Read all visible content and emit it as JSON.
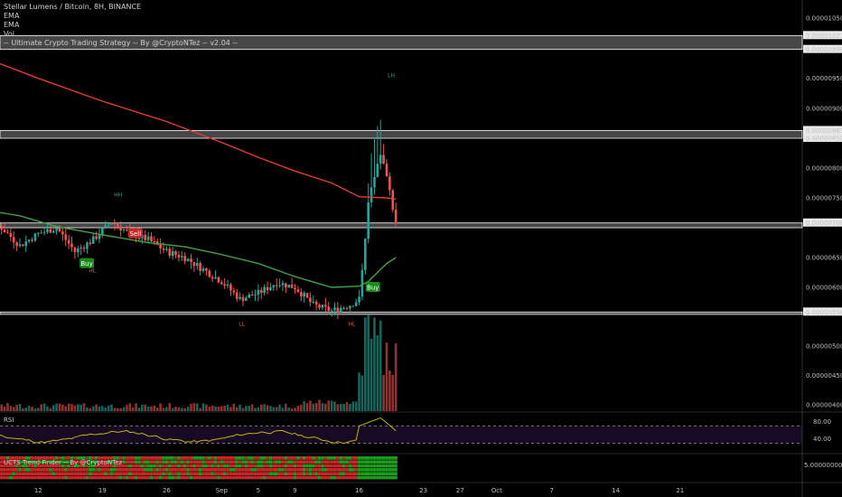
{
  "legend": {
    "title": "Stellar Lumens / Bitcoin, 8H, BINANCE",
    "ema1": "EMA",
    "ema2": "EMA",
    "vol": "Vol",
    "strategy": "-- Ultimate Crypto Trading Strategy -- By @CryptoNTez -- v2.04 --"
  },
  "panes": {
    "rsi": {
      "label": "RSI",
      "ticks": [
        "80.00",
        "40.00"
      ],
      "upper": 70,
      "lower": 30
    },
    "trend": {
      "label": "UCTS Trend Finder -- By @CryptoNTez",
      "ticks": [
        "5.00000000"
      ]
    }
  },
  "colors": {
    "up": "#26a69a",
    "down": "#ef5350",
    "ema_long": "#e53935",
    "ema_short": "#43a047",
    "rsi": "#c8b400",
    "zone": "#ffffff",
    "buy_bg": "#1b8a1b",
    "sell_bg": "#c62828"
  },
  "chart_data": {
    "type": "candlestick",
    "title": "Stellar Lumens / Bitcoin, 8H, BINANCE",
    "x_ticks": [
      {
        "label": "12",
        "day": 12
      },
      {
        "label": "19",
        "day": 19
      },
      {
        "label": "26",
        "day": 26
      },
      {
        "label": "Sep",
        "day": 32
      },
      {
        "label": "5",
        "day": 36
      },
      {
        "label": "9",
        "day": 40
      },
      {
        "label": "16",
        "day": 47
      },
      {
        "label": "23",
        "day": 54
      },
      {
        "label": "27",
        "day": 58
      },
      {
        "label": "Oct",
        "day": 62
      },
      {
        "label": "7",
        "day": 68
      },
      {
        "label": "14",
        "day": 75
      },
      {
        "label": "21",
        "day": 82
      }
    ],
    "price_ticks": [
      {
        "label": "0.00001050",
        "v": 1.05e-05
      },
      {
        "label": "0.00001021",
        "v": 1.021e-05
      },
      {
        "label": "0.00000998",
        "v": 9.98e-06
      },
      {
        "label": "0.00000950",
        "v": 9.5e-06
      },
      {
        "label": "0.00000900",
        "v": 9e-06
      },
      {
        "label": "0.00000863",
        "v": 8.63e-06
      },
      {
        "label": "0.00000850",
        "v": 8.5e-06
      },
      {
        "label": "0.00000800",
        "v": 8e-06
      },
      {
        "label": "0.00000750",
        "v": 7.5e-06
      },
      {
        "label": "0.00000708",
        "v": 7.08e-06
      },
      {
        "label": "0.00000650",
        "v": 6.5e-06
      },
      {
        "label": "0.00000600",
        "v": 6e-06
      },
      {
        "label": "0.00000558",
        "v": 5.58e-06
      },
      {
        "label": "0.00000500",
        "v": 5e-06
      },
      {
        "label": "0.00000450",
        "v": 4.5e-06
      },
      {
        "label": "0.00000400",
        "v": 4e-06
      }
    ],
    "ylim": [
      4e-06,
      1.1e-05
    ],
    "zones": [
      {
        "from": 9.98e-06,
        "to": 1.021e-05
      },
      {
        "from": 8.5e-06,
        "to": 8.63e-06
      },
      {
        "from": 7e-06,
        "to": 7.08e-06
      },
      {
        "from": 5.54e-06,
        "to": 5.58e-06
      }
    ],
    "ema_long": [
      [
        1,
        1.03e-05
      ],
      [
        6,
        9.85e-06
      ],
      [
        12,
        9.5e-06
      ],
      [
        19,
        9.12e-06
      ],
      [
        26,
        8.78e-06
      ],
      [
        32,
        8.43e-06
      ],
      [
        36,
        8.18e-06
      ],
      [
        40,
        7.95e-06
      ],
      [
        44,
        7.75e-06
      ],
      [
        47,
        7.52e-06
      ],
      [
        50,
        7.5e-06
      ],
      [
        51,
        7.48e-06
      ]
    ],
    "ema_short": [
      [
        1,
        7.9e-06
      ],
      [
        3,
        7.6e-06
      ],
      [
        6,
        7.3e-06
      ],
      [
        10,
        7.2e-06
      ],
      [
        14,
        7.02e-06
      ],
      [
        19,
        6.88e-06
      ],
      [
        24,
        6.75e-06
      ],
      [
        28,
        6.68e-06
      ],
      [
        32,
        6.55e-06
      ],
      [
        36,
        6.4e-06
      ],
      [
        40,
        6.18e-06
      ],
      [
        44,
        6e-06
      ],
      [
        47,
        6.02e-06
      ],
      [
        48,
        6.1e-06
      ],
      [
        49,
        6.25e-06
      ],
      [
        50,
        6.4e-06
      ],
      [
        51,
        6.5e-06
      ]
    ],
    "signals": [
      {
        "label": "Buy",
        "day": 17.2,
        "price": 6.4e-06
      },
      {
        "label": "Sell",
        "day": 22.5,
        "price": 6.9e-06
      },
      {
        "label": "Buy",
        "day": 48.4,
        "price": 6e-06
      }
    ],
    "markers": [
      {
        "label": "HH",
        "day": 7.3,
        "price": 7.3e-06,
        "kind": "high"
      },
      {
        "label": "HH",
        "day": 20.7,
        "price": 7.4e-06,
        "kind": "high"
      },
      {
        "label": "LH",
        "day": 50.5,
        "price": 9.4e-06,
        "kind": "high"
      },
      {
        "label": "HL",
        "day": 5.5,
        "price": 6.3e-06,
        "kind": "low"
      },
      {
        "label": "HL",
        "day": 17.9,
        "price": 6.4e-06,
        "kind": "low"
      },
      {
        "label": "HL",
        "day": 46.2,
        "price": 5.5e-06,
        "kind": "low"
      },
      {
        "label": "LL",
        "day": 34.2,
        "price": 5.5e-06,
        "kind": "low"
      }
    ],
    "rsi_ticks": [
      {
        "label": "80.00",
        "v": 80
      },
      {
        "label": "40.00",
        "v": 40
      }
    ],
    "trend_ticks": [
      {
        "label": "5.00000000",
        "v": 5
      }
    ]
  }
}
